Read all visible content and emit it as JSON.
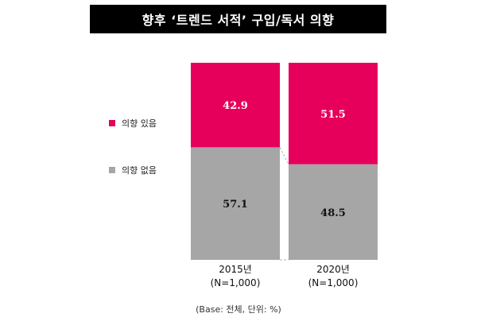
{
  "chart_data": {
    "type": "bar",
    "stacked": true,
    "title": "향후 ‘트렌드 서적’ 구입/독서 의향",
    "categories": [
      {
        "year": "2015년",
        "base": "(N=1,000)"
      },
      {
        "year": "2020년",
        "base": "(N=1,000)"
      }
    ],
    "series": [
      {
        "name": "의향 없음",
        "values": [
          57.1,
          48.5
        ],
        "color": "#a6a6a6"
      },
      {
        "name": "의향 있음",
        "values": [
          42.9,
          51.5
        ],
        "color": "#e6005c"
      }
    ],
    "value_labels": [
      [
        "57.1",
        "48.5"
      ],
      [
        "42.9",
        "51.5"
      ]
    ],
    "ylim": [
      0,
      100
    ],
    "legend_position": "left",
    "footnote": "(Base: 전체, 단위: %)"
  }
}
